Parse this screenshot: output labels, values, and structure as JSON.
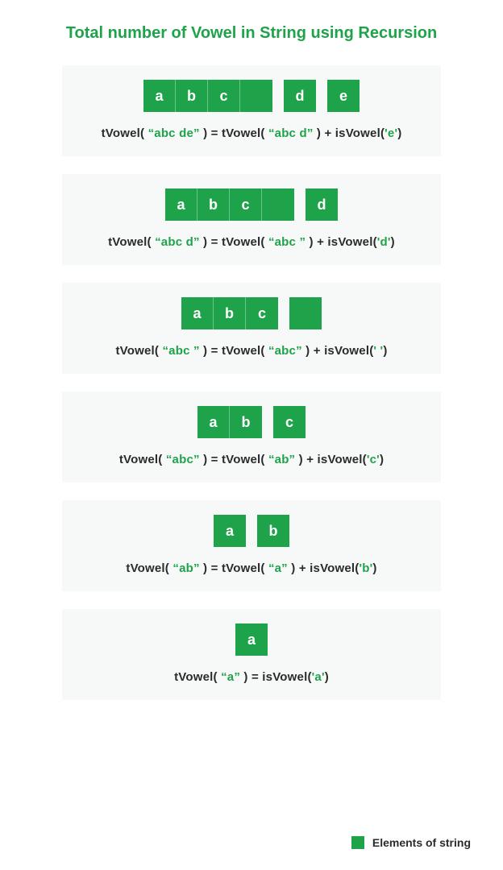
{
  "title": "Total number of Vowel in String using Recursion",
  "colors": {
    "accent": "#1fa34a",
    "card_bg": "#f7f8f8",
    "text": "#2b2b2b",
    "cell_text": "#ffffff"
  },
  "cell": {
    "width": 40,
    "height": 40,
    "gap": 14
  },
  "steps": [
    {
      "groups": [
        [
          "a",
          "b",
          "c",
          ""
        ],
        [
          "d"
        ],
        [
          "e"
        ]
      ],
      "formula": [
        {
          "t": "fn",
          "v": "tVowel( "
        },
        {
          "t": "str",
          "v": "“abc de”"
        },
        {
          "t": "fn",
          "v": " )  =  tVowel( "
        },
        {
          "t": "str",
          "v": "“abc d”"
        },
        {
          "t": "fn",
          "v": " ) + "
        },
        {
          "t": "fn",
          "v": "isVowel("
        },
        {
          "t": "str",
          "v": "'e'"
        },
        {
          "t": "fn",
          "v": ")"
        }
      ]
    },
    {
      "groups": [
        [
          "a",
          "b",
          "c",
          ""
        ],
        [
          "d"
        ]
      ],
      "formula": [
        {
          "t": "fn",
          "v": "tVowel( "
        },
        {
          "t": "str",
          "v": "“abc d”"
        },
        {
          "t": "fn",
          "v": " )  =  tVowel( "
        },
        {
          "t": "str",
          "v": "“abc ”"
        },
        {
          "t": "fn",
          "v": " ) + "
        },
        {
          "t": "fn",
          "v": "isVowel("
        },
        {
          "t": "str",
          "v": "'d'"
        },
        {
          "t": "fn",
          "v": ")"
        }
      ]
    },
    {
      "groups": [
        [
          "a",
          "b",
          "c"
        ],
        [
          ""
        ]
      ],
      "formula": [
        {
          "t": "fn",
          "v": "tVowel( "
        },
        {
          "t": "str",
          "v": "“abc ”"
        },
        {
          "t": "fn",
          "v": " )  =  tVowel( "
        },
        {
          "t": "str",
          "v": "“abc”"
        },
        {
          "t": "fn",
          "v": " ) + "
        },
        {
          "t": "fn",
          "v": "isVowel("
        },
        {
          "t": "str",
          "v": "' '"
        },
        {
          "t": "fn",
          "v": ")"
        }
      ]
    },
    {
      "groups": [
        [
          "a",
          "b"
        ],
        [
          "c"
        ]
      ],
      "formula": [
        {
          "t": "fn",
          "v": "tVowel( "
        },
        {
          "t": "str",
          "v": "“abc”"
        },
        {
          "t": "fn",
          "v": " )  =  tVowel( "
        },
        {
          "t": "str",
          "v": "“ab”"
        },
        {
          "t": "fn",
          "v": " ) + "
        },
        {
          "t": "fn",
          "v": "isVowel("
        },
        {
          "t": "str",
          "v": "'c'"
        },
        {
          "t": "fn",
          "v": ")"
        }
      ]
    },
    {
      "groups": [
        [
          "a"
        ],
        [
          "b"
        ]
      ],
      "formula": [
        {
          "t": "fn",
          "v": "tVowel( "
        },
        {
          "t": "str",
          "v": "“ab”"
        },
        {
          "t": "fn",
          "v": " )  =  tVowel( "
        },
        {
          "t": "str",
          "v": "“a”"
        },
        {
          "t": "fn",
          "v": " ) + "
        },
        {
          "t": "fn",
          "v": "isVowel("
        },
        {
          "t": "str",
          "v": "'b'"
        },
        {
          "t": "fn",
          "v": ")"
        }
      ]
    },
    {
      "groups": [
        [
          "a"
        ]
      ],
      "formula": [
        {
          "t": "fn",
          "v": "tVowel( "
        },
        {
          "t": "str",
          "v": "“a”"
        },
        {
          "t": "fn",
          "v": " )  =  "
        },
        {
          "t": "fn",
          "v": "isVowel("
        },
        {
          "t": "str",
          "v": "'a'"
        },
        {
          "t": "fn",
          "v": ")"
        }
      ]
    }
  ],
  "legend": {
    "label": "Elements of string"
  }
}
